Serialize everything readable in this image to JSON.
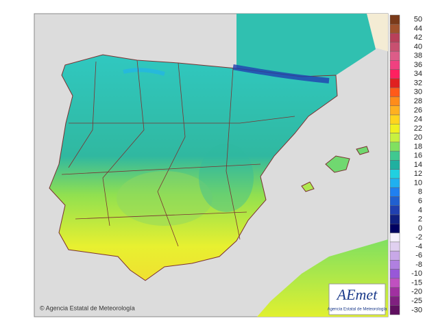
{
  "legend": {
    "labels": [
      50,
      44,
      42,
      40,
      38,
      36,
      34,
      32,
      30,
      28,
      26,
      24,
      22,
      20,
      18,
      16,
      14,
      12,
      10,
      8,
      6,
      4,
      2,
      0,
      -2,
      -4,
      -6,
      -8,
      -10,
      -15,
      -20,
      -25,
      -30
    ],
    "colors": [
      "#7a3a1a",
      "#a0522d",
      "#b8405a",
      "#c85070",
      "#dc5c88",
      "#f04080",
      "#ff2060",
      "#e02020",
      "#ff5a1a",
      "#ff8c1a",
      "#ffb020",
      "#ffd41e",
      "#f0f020",
      "#c8f040",
      "#80e060",
      "#40c890",
      "#20b0a0",
      "#20d0e0",
      "#20b0f0",
      "#2080f0",
      "#2060d0",
      "#2040b0",
      "#102080",
      "#000060",
      "#f4eefa",
      "#e0d0f0",
      "#c8a8e8",
      "#b080e0",
      "#9858d8",
      "#c050c0",
      "#a030a0",
      "#802080",
      "#601060"
    ]
  },
  "credit": "© Agencia Estatal de Meteorología",
  "logo": {
    "name": "AEmet",
    "subtitle": "Agencia Estatal de Meteorología"
  }
}
